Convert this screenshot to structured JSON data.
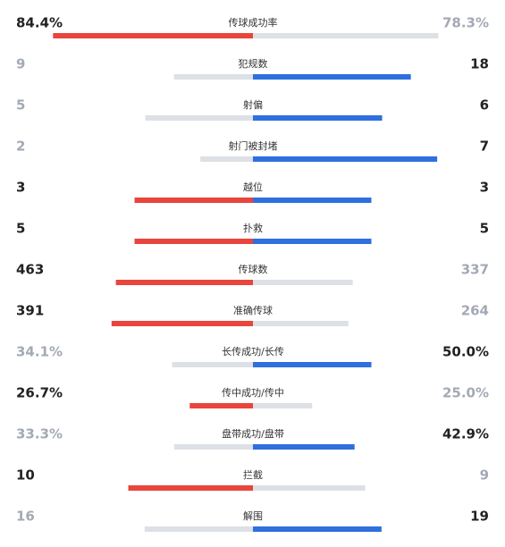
{
  "stats": [
    {
      "label": "传球成功率",
      "home": {
        "value": 84.4,
        "label": "84.4%"
      },
      "away": {
        "value": 78.3,
        "label": "78.3%"
      }
    },
    {
      "label": "犯规数",
      "home": 9,
      "away": 18
    },
    {
      "label": "射偏",
      "home": 5,
      "away": 6
    },
    {
      "label": "射门被封堵",
      "home": 2,
      "away": 7
    },
    {
      "label": "越位",
      "home": 3,
      "away": 3
    },
    {
      "label": "扑救",
      "home": 5,
      "away": 5
    },
    {
      "label": "传球数",
      "home": 463,
      "away": 337
    },
    {
      "label": "准确传球",
      "home": 391,
      "away": 264
    },
    {
      "label": "长传成功/长传",
      "home": {
        "value": 34.1,
        "label": "34.1%"
      },
      "away": {
        "value": 50.0,
        "label": "50.0%"
      }
    },
    {
      "label": "传中成功/传中",
      "home": {
        "value": 26.7,
        "label": "26.7%"
      },
      "away": {
        "value": 25.0,
        "label": "25.0%"
      }
    },
    {
      "label": "盘带成功/盘带",
      "home": {
        "value": 33.3,
        "label": "33.3%"
      },
      "away": {
        "value": 42.9,
        "label": "42.9%"
      }
    },
    {
      "label": "拦截",
      "home": 10,
      "away": 9
    },
    {
      "label": "解围",
      "home": 16,
      "away": 19
    }
  ],
  "colors": {
    "home": "#e8453c",
    "away": "#2f6fde",
    "loser": "#dde0e5"
  }
}
